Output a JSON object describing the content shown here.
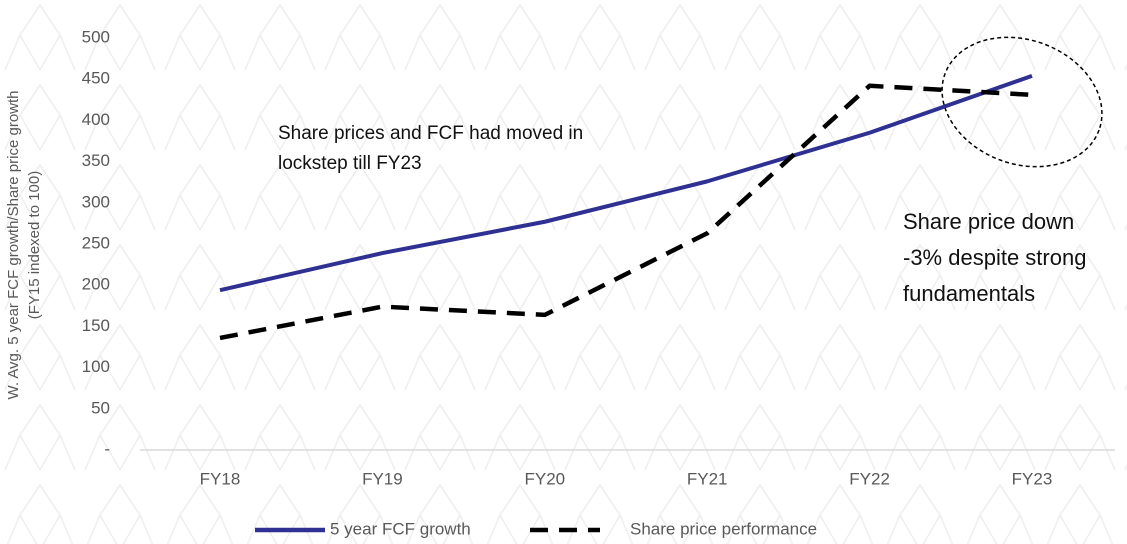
{
  "chart_data": {
    "type": "line",
    "y_label": [
      "W. Avg. 5 year FCF growth/Share price growth",
      "(FY15 indexed to 100)"
    ],
    "categories": [
      "FY18",
      "FY19",
      "FY20",
      "FY21",
      "FY22",
      "FY23"
    ],
    "series": [
      {
        "name": "5 year FCF growth",
        "color": "#2e3192",
        "dash": false,
        "values": [
          194,
          239,
          277,
          326,
          385,
          454
        ]
      },
      {
        "name": "Share price performance",
        "color": "#000000",
        "dash": true,
        "values": [
          136,
          174,
          164,
          263,
          442,
          431
        ]
      }
    ],
    "ylim": [
      0,
      500
    ],
    "yticks": [
      {
        "value": 0,
        "label": "-"
      },
      50,
      100,
      150,
      200,
      250,
      300,
      350,
      400,
      450,
      500
    ],
    "grid": false,
    "legend": "bottom",
    "annotations": [
      {
        "lines": [
          "Share prices and FCF had moved in",
          "lockstep till FY23"
        ]
      },
      {
        "lines": [
          "Share price down",
          "-3% despite strong",
          "fundamentals"
        ]
      }
    ]
  }
}
